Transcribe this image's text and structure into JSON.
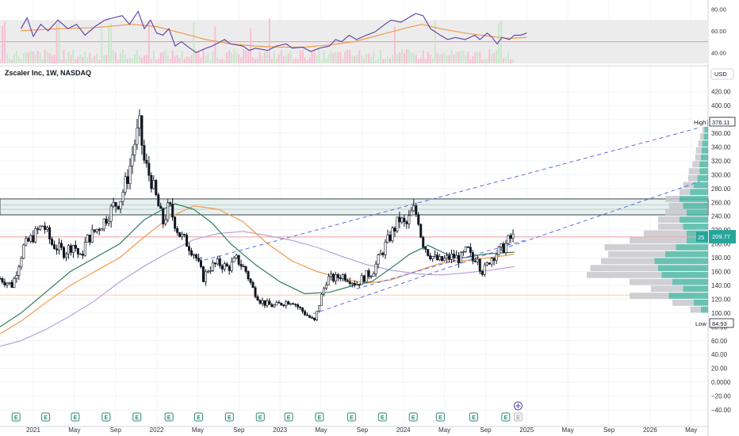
{
  "header": {
    "title": "Zscaler Inc, 1W, NASDAQ",
    "currency": "USD"
  },
  "price_tags": {
    "high_label": "High",
    "high_value": "376.11",
    "low_label": "Low",
    "low_value": "84.93",
    "last_prefix": "25",
    "last_value": "209.77"
  },
  "colors": {
    "up": "#26a69a",
    "down": "#131722",
    "sma_fast": "#2e7d5b",
    "sma_slow": "#f29a4a",
    "sma_long": "#b39ddb",
    "trendline": "#5b6ee1",
    "rsi_line": "#5b3fa8",
    "rsi_ma": "#f29a4a",
    "volume_profile_up": "#4fb7a3",
    "volume_profile_down": "#c8c8cc",
    "zone": "#e6f1ef",
    "current_price_line": "#ef9a9a",
    "earnings_icon": "#2a8a73"
  },
  "chart_data": [
    {
      "type": "line",
      "name": "RSI panel",
      "y_ticks": [
        "80.00",
        "60.00",
        "40.00"
      ],
      "ylim": [
        30,
        87
      ],
      "levels": [
        70,
        50,
        30
      ],
      "rsi_points": [
        [
          2020.9,
          62
        ],
        [
          2020.95,
          72
        ],
        [
          2021.0,
          55
        ],
        [
          2021.06,
          66
        ],
        [
          2021.12,
          60
        ],
        [
          2021.2,
          70
        ],
        [
          2021.28,
          62
        ],
        [
          2021.35,
          66
        ],
        [
          2021.42,
          56
        ],
        [
          2021.5,
          64
        ],
        [
          2021.58,
          70
        ],
        [
          2021.65,
          72
        ],
        [
          2021.72,
          74
        ],
        [
          2021.78,
          66
        ],
        [
          2021.85,
          78
        ],
        [
          2021.9,
          62
        ],
        [
          2021.95,
          70
        ],
        [
          2022.0,
          58
        ],
        [
          2022.05,
          56
        ],
        [
          2022.1,
          62
        ],
        [
          2022.15,
          46
        ],
        [
          2022.2,
          50
        ],
        [
          2022.27,
          44
        ],
        [
          2022.32,
          40
        ],
        [
          2022.4,
          44
        ],
        [
          2022.45,
          46
        ],
        [
          2022.55,
          52
        ],
        [
          2022.6,
          48
        ],
        [
          2022.7,
          46
        ],
        [
          2022.75,
          42
        ],
        [
          2022.8,
          44
        ],
        [
          2022.9,
          42
        ],
        [
          2022.97,
          46
        ],
        [
          2023.05,
          48
        ],
        [
          2023.1,
          44
        ],
        [
          2023.18,
          45
        ],
        [
          2023.25,
          41
        ],
        [
          2023.32,
          44
        ],
        [
          2023.4,
          46
        ],
        [
          2023.45,
          52
        ],
        [
          2023.5,
          50
        ],
        [
          2023.56,
          56
        ],
        [
          2023.62,
          52
        ],
        [
          2023.7,
          56
        ],
        [
          2023.77,
          59
        ],
        [
          2023.85,
          66
        ],
        [
          2023.9,
          70
        ],
        [
          2023.98,
          68
        ],
        [
          2024.04,
          72
        ],
        [
          2024.1,
          76
        ],
        [
          2024.16,
          74
        ],
        [
          2024.22,
          62
        ],
        [
          2024.3,
          56
        ],
        [
          2024.36,
          52
        ],
        [
          2024.42,
          54
        ],
        [
          2024.5,
          52
        ],
        [
          2024.58,
          56
        ],
        [
          2024.62,
          52
        ],
        [
          2024.68,
          58
        ],
        [
          2024.72,
          54
        ],
        [
          2024.76,
          48
        ],
        [
          2024.8,
          54
        ],
        [
          2024.86,
          52
        ],
        [
          2024.9,
          56
        ],
        [
          2024.95,
          56
        ],
        [
          2025.0,
          58
        ]
      ],
      "rsi_ma_points": [
        [
          2020.9,
          60
        ],
        [
          2021.2,
          62
        ],
        [
          2021.5,
          63
        ],
        [
          2021.8,
          66
        ],
        [
          2022.0,
          64
        ],
        [
          2022.2,
          58
        ],
        [
          2022.4,
          52
        ],
        [
          2022.6,
          48
        ],
        [
          2022.8,
          46
        ],
        [
          2023.0,
          45
        ],
        [
          2023.2,
          45
        ],
        [
          2023.4,
          47
        ],
        [
          2023.6,
          50
        ],
        [
          2023.8,
          56
        ],
        [
          2024.0,
          62
        ],
        [
          2024.15,
          66
        ],
        [
          2024.3,
          62
        ],
        [
          2024.5,
          58
        ],
        [
          2024.7,
          55
        ],
        [
          2024.85,
          53
        ],
        [
          2025.0,
          54
        ]
      ]
    },
    {
      "type": "candlestick",
      "name": "Price panel",
      "x_labels": [
        "2021",
        "May",
        "Sep",
        "2022",
        "May",
        "Sep",
        "2023",
        "May",
        "Sep",
        "2024",
        "May",
        "Sep",
        "2025",
        "May",
        "Sep",
        "2026",
        "May"
      ],
      "x_label_positions": [
        2021.0,
        2021.333,
        2021.667,
        2022.0,
        2022.333,
        2022.667,
        2023.0,
        2023.333,
        2023.667,
        2024.0,
        2024.333,
        2024.667,
        2025.0,
        2025.333,
        2025.667,
        2026.0,
        2026.333
      ],
      "xlim": [
        2020.73,
        2026.47
      ],
      "y_ticks": [
        "420.00",
        "400.00",
        "380.00",
        "360.00",
        "340.00",
        "320.00",
        "300.00",
        "280.00",
        "260.00",
        "240.00",
        "220.00",
        "200.00",
        "180.00",
        "160.00",
        "140.00",
        "120.00",
        "100.00",
        "80.00",
        "60.00",
        "40.00",
        "20.00",
        "0.0000",
        "−20.00",
        "−40.00"
      ],
      "ylim": [
        -48,
        438
      ],
      "zone": [
        242,
        265
      ],
      "anchors": [
        [
          2020.73,
          150
        ],
        [
          2020.83,
          140
        ],
        [
          2020.92,
          195
        ],
        [
          2021.02,
          215
        ],
        [
          2021.08,
          228
        ],
        [
          2021.15,
          200
        ],
        [
          2021.25,
          188
        ],
        [
          2021.33,
          200
        ],
        [
          2021.38,
          178
        ],
        [
          2021.43,
          205
        ],
        [
          2021.55,
          228
        ],
        [
          2021.6,
          240
        ],
        [
          2021.65,
          255
        ],
        [
          2021.7,
          262
        ],
        [
          2021.77,
          300
        ],
        [
          2021.82,
          345
        ],
        [
          2021.86,
          370
        ],
        [
          2021.9,
          318
        ],
        [
          2021.96,
          290
        ],
        [
          2022.05,
          230
        ],
        [
          2022.1,
          255
        ],
        [
          2022.18,
          215
        ],
        [
          2022.25,
          200
        ],
        [
          2022.31,
          185
        ],
        [
          2022.38,
          150
        ],
        [
          2022.42,
          165
        ],
        [
          2022.5,
          172
        ],
        [
          2022.58,
          165
        ],
        [
          2022.65,
          178
        ],
        [
          2022.72,
          162
        ],
        [
          2022.78,
          135
        ],
        [
          2022.84,
          118
        ],
        [
          2022.9,
          112
        ],
        [
          2022.96,
          110
        ],
        [
          2023.02,
          115
        ],
        [
          2023.1,
          118
        ],
        [
          2023.15,
          108
        ],
        [
          2023.2,
          100
        ],
        [
          2023.25,
          92
        ],
        [
          2023.28,
          88
        ],
        [
          2023.32,
          115
        ],
        [
          2023.38,
          150
        ],
        [
          2023.45,
          150
        ],
        [
          2023.5,
          155
        ],
        [
          2023.56,
          150
        ],
        [
          2023.62,
          142
        ],
        [
          2023.68,
          152
        ],
        [
          2023.75,
          160
        ],
        [
          2023.8,
          178
        ],
        [
          2023.86,
          200
        ],
        [
          2023.92,
          220
        ],
        [
          2023.97,
          236
        ],
        [
          2024.02,
          225
        ],
        [
          2024.08,
          250
        ],
        [
          2024.12,
          238
        ],
        [
          2024.15,
          205
        ],
        [
          2024.2,
          188
        ],
        [
          2024.26,
          178
        ],
        [
          2024.3,
          175
        ],
        [
          2024.35,
          178
        ],
        [
          2024.4,
          182
        ],
        [
          2024.46,
          178
        ],
        [
          2024.52,
          192
        ],
        [
          2024.56,
          175
        ],
        [
          2024.6,
          185
        ],
        [
          2024.63,
          160
        ],
        [
          2024.67,
          165
        ],
        [
          2024.7,
          178
        ],
        [
          2024.74,
          185
        ],
        [
          2024.78,
          190
        ],
        [
          2024.82,
          196
        ],
        [
          2024.86,
          207
        ],
        [
          2024.9,
          210
        ]
      ],
      "sma_fast": [
        [
          2020.73,
          80
        ],
        [
          2020.9,
          100
        ],
        [
          2021.1,
          130
        ],
        [
          2021.3,
          160
        ],
        [
          2021.5,
          180
        ],
        [
          2021.7,
          200
        ],
        [
          2021.9,
          235
        ],
        [
          2022.05,
          250
        ],
        [
          2022.15,
          258
        ],
        [
          2022.3,
          250
        ],
        [
          2022.45,
          230
        ],
        [
          2022.6,
          200
        ],
        [
          2022.8,
          170
        ],
        [
          2023.0,
          145
        ],
        [
          2023.2,
          128
        ],
        [
          2023.4,
          130
        ],
        [
          2023.6,
          140
        ],
        [
          2023.75,
          146
        ],
        [
          2023.9,
          165
        ],
        [
          2024.05,
          185
        ],
        [
          2024.2,
          198
        ],
        [
          2024.35,
          185
        ],
        [
          2024.5,
          180
        ],
        [
          2024.65,
          185
        ],
        [
          2024.8,
          187
        ],
        [
          2024.9,
          188
        ]
      ],
      "sma_slow": [
        [
          2020.73,
          70
        ],
        [
          2020.9,
          88
        ],
        [
          2021.1,
          115
        ],
        [
          2021.3,
          140
        ],
        [
          2021.5,
          160
        ],
        [
          2021.7,
          180
        ],
        [
          2021.9,
          210
        ],
        [
          2022.1,
          238
        ],
        [
          2022.3,
          255
        ],
        [
          2022.5,
          250
        ],
        [
          2022.7,
          232
        ],
        [
          2022.9,
          200
        ],
        [
          2023.1,
          175
        ],
        [
          2023.3,
          160
        ],
        [
          2023.5,
          150
        ],
        [
          2023.7,
          143
        ],
        [
          2023.9,
          148
        ],
        [
          2024.1,
          160
        ],
        [
          2024.3,
          172
        ],
        [
          2024.5,
          176
        ],
        [
          2024.7,
          180
        ],
        [
          2024.9,
          185
        ]
      ],
      "sma_long": [
        [
          2020.73,
          52
        ],
        [
          2020.9,
          60
        ],
        [
          2021.1,
          76
        ],
        [
          2021.3,
          96
        ],
        [
          2021.5,
          118
        ],
        [
          2021.7,
          145
        ],
        [
          2021.9,
          168
        ],
        [
          2022.1,
          188
        ],
        [
          2022.3,
          206
        ],
        [
          2022.5,
          215
        ],
        [
          2022.7,
          218
        ],
        [
          2022.9,
          212
        ],
        [
          2023.1,
          205
        ],
        [
          2023.3,
          195
        ],
        [
          2023.5,
          182
        ],
        [
          2023.7,
          170
        ],
        [
          2023.9,
          162
        ],
        [
          2024.1,
          157
        ],
        [
          2024.3,
          155
        ],
        [
          2024.5,
          158
        ],
        [
          2024.7,
          162
        ],
        [
          2024.9,
          167
        ]
      ],
      "trendlines": [
        [
          [
            2022.33,
            174
          ],
          [
            2026.4,
            368
          ]
        ],
        [
          [
            2023.27,
            99
          ],
          [
            2026.4,
            290
          ]
        ],
        [
          [
            2023.62,
            135
          ],
          [
            2025.0,
            206
          ]
        ],
        [
          [
            2022.32,
            126
          ],
          [
            2024.9,
            126
          ]
        ]
      ],
      "earnings_x": [
        2020.86,
        2021.1,
        2021.34,
        2021.59,
        2021.84,
        2022.1,
        2022.34,
        2022.59,
        2022.84,
        2023.07,
        2023.32,
        2023.58,
        2023.83,
        2024.08,
        2024.3,
        2024.57,
        2024.83
      ]
    },
    {
      "type": "bar",
      "name": "Volume profile",
      "levels": [
        100,
        110,
        120,
        130,
        140,
        150,
        160,
        170,
        180,
        190,
        200,
        210,
        220,
        230,
        240,
        250,
        260,
        270,
        280,
        290,
        300,
        310,
        320,
        330,
        340,
        350,
        360,
        370
      ],
      "up_volume": [
        10,
        20,
        55,
        35,
        50,
        65,
        70,
        75,
        60,
        45,
        30,
        30,
        35,
        40,
        30,
        35,
        40,
        25,
        20,
        15,
        12,
        12,
        10,
        9,
        8,
        6,
        5,
        4
      ],
      "down_volume": [
        15,
        30,
        55,
        45,
        60,
        105,
        95,
        75,
        80,
        100,
        80,
        60,
        35,
        30,
        30,
        20,
        20,
        15,
        15,
        13,
        15,
        10,
        8,
        8,
        6,
        5,
        3,
        2
      ]
    }
  ]
}
